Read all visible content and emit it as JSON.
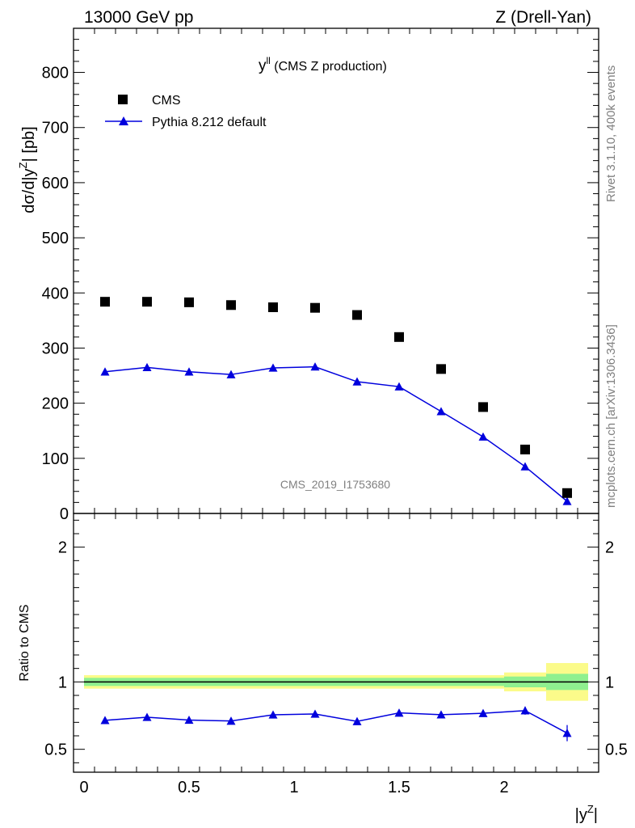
{
  "header": {
    "left": "13000 GeV pp",
    "right": "Z (Drell-Yan)"
  },
  "side_labels": {
    "top": "Rivet 3.1.10,  400k events",
    "bottom": "mcplots.cern.ch [arXiv:1306.3436]"
  },
  "chart_data": [
    {
      "type": "scatter",
      "title_main": "y",
      "title_sup": "ll",
      "title_rest": " (CMS Z production)",
      "ylabel": "dσ/d|y^Z| [pb]",
      "xlabel": "|y^Z|",
      "annotation": "CMS_2019_I1753680",
      "xlim": [
        -0.05,
        2.45
      ],
      "ylim": [
        0,
        880
      ],
      "yticks": [
        {
          "v": 0,
          "label": "0"
        },
        {
          "v": 100,
          "label": "100"
        },
        {
          "v": 200,
          "label": "200"
        },
        {
          "v": 300,
          "label": "300"
        },
        {
          "v": 400,
          "label": "400"
        },
        {
          "v": 500,
          "label": "500"
        },
        {
          "v": 600,
          "label": "600"
        },
        {
          "v": 700,
          "label": "700"
        },
        {
          "v": 800,
          "label": "800"
        }
      ],
      "legend_position": "top-left",
      "series": [
        {
          "name": "CMS",
          "marker": "square",
          "color": "#000000",
          "x": [
            0.1,
            0.3,
            0.5,
            0.7,
            0.9,
            1.1,
            1.3,
            1.5,
            1.7,
            1.9,
            2.1,
            2.3
          ],
          "y": [
            384,
            384,
            383,
            378,
            374,
            373,
            360,
            320,
            262,
            193,
            116,
            37
          ]
        },
        {
          "name": "Pythia 8.212 default",
          "marker": "triangle",
          "color": "#0000dd",
          "x": [
            0.1,
            0.3,
            0.5,
            0.7,
            0.9,
            1.1,
            1.3,
            1.5,
            1.7,
            1.9,
            2.1,
            2.3
          ],
          "y": [
            257,
            265,
            257,
            252,
            264,
            266,
            239,
            230,
            185,
            139,
            85,
            22
          ],
          "yerr": [
            6,
            6,
            6,
            6,
            6,
            6,
            5,
            5,
            4,
            4,
            3,
            2
          ]
        }
      ]
    },
    {
      "type": "scatter",
      "ylabel": "Ratio to CMS",
      "xlabel": "|y^Z|",
      "xlim": [
        -0.05,
        2.45
      ],
      "ylim": [
        0.33,
        2.25
      ],
      "xticks": [
        {
          "v": 0,
          "label": "0"
        },
        {
          "v": 0.5,
          "label": "0.5"
        },
        {
          "v": 1,
          "label": "1"
        },
        {
          "v": 1.5,
          "label": "1.5"
        },
        {
          "v": 2,
          "label": "2"
        }
      ],
      "yticks": [
        {
          "v": 0.5,
          "label": "0.5"
        },
        {
          "v": 1,
          "label": "1"
        },
        {
          "v": 2,
          "label": "2"
        }
      ],
      "reference_line": 1,
      "bands": {
        "edges": [
          0,
          0.2,
          0.4,
          0.6,
          0.8,
          1.0,
          1.2,
          1.4,
          1.6,
          1.8,
          2.0,
          2.2,
          2.4
        ],
        "inner_halfwidth": [
          0.03,
          0.03,
          0.03,
          0.03,
          0.03,
          0.03,
          0.03,
          0.03,
          0.03,
          0.03,
          0.04,
          0.06
        ],
        "outer_halfwidth": [
          0.05,
          0.05,
          0.05,
          0.05,
          0.05,
          0.05,
          0.05,
          0.05,
          0.05,
          0.05,
          0.07,
          0.14
        ],
        "inner_color": "#8ff08f",
        "outer_color": "#fbfb8a"
      },
      "series": [
        {
          "name": "Pythia 8.212 default",
          "marker": "triangle",
          "color": "#0000dd",
          "x": [
            0.1,
            0.3,
            0.5,
            0.7,
            0.9,
            1.1,
            1.3,
            1.5,
            1.7,
            1.9,
            2.1,
            2.3
          ],
          "y": [
            0.715,
            0.738,
            0.717,
            0.71,
            0.756,
            0.762,
            0.707,
            0.77,
            0.757,
            0.767,
            0.787,
            0.62
          ],
          "yerr": [
            0.017,
            0.017,
            0.017,
            0.017,
            0.017,
            0.017,
            0.016,
            0.018,
            0.018,
            0.022,
            0.03,
            0.06
          ]
        }
      ]
    }
  ]
}
